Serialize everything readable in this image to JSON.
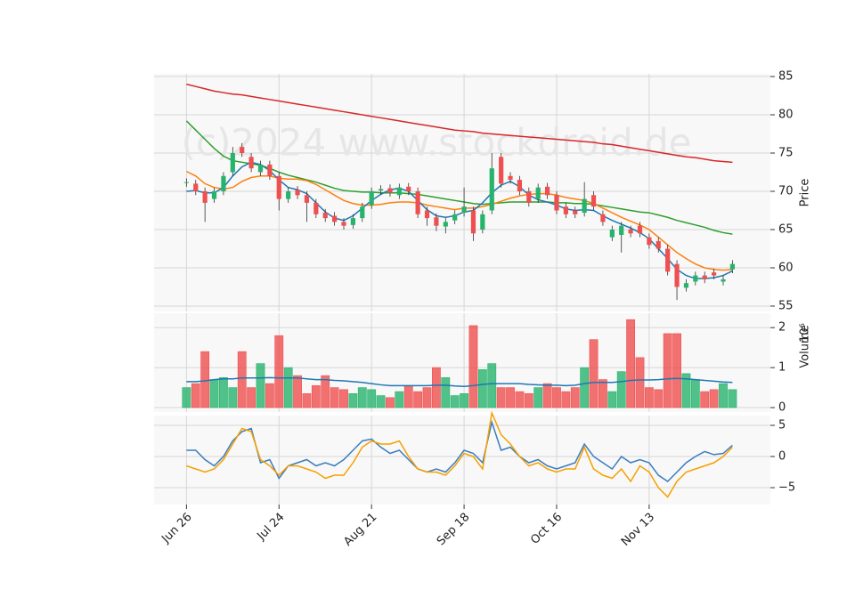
{
  "chart_data": [
    {
      "type": "candlestick",
      "watermark": "(c)2024 www.stockdroid.de",
      "y_label": "Price",
      "x": [
        0,
        1,
        2,
        3,
        4,
        5,
        6,
        7,
        8,
        9,
        10,
        11,
        12,
        13,
        14,
        15,
        16,
        17,
        18,
        19,
        20,
        21,
        22,
        23,
        24,
        25,
        26,
        27,
        28,
        29,
        30,
        31,
        32,
        33,
        34,
        35,
        36,
        37,
        38,
        39,
        40,
        41,
        42,
        43,
        44,
        45,
        46,
        47,
        48,
        49,
        50,
        51,
        52,
        53,
        54,
        55,
        56,
        57,
        58,
        59
      ],
      "open": [
        71.1,
        71,
        70,
        69,
        70,
        72.5,
        75.8,
        74.5,
        72.5,
        73.5,
        72,
        69,
        70.2,
        69.5,
        68.5,
        67.2,
        66.8,
        66,
        65.6,
        66.5,
        68.2,
        70.1,
        70.4,
        69.5,
        70.6,
        70,
        67.5,
        66.6,
        65.4,
        66.2,
        67.2,
        67.5,
        65,
        67.5,
        74.5,
        72,
        71.5,
        70,
        69,
        70.6,
        69.5,
        68,
        67.5,
        67.2,
        69.5,
        67,
        64,
        64.3,
        65,
        65.5,
        64,
        63.5,
        62.5,
        60.5,
        57.4,
        58.2,
        59,
        59.4,
        58.2,
        59.8
      ],
      "high": [
        71.7,
        71.5,
        70.5,
        70.5,
        72.5,
        75.8,
        76.3,
        75,
        74,
        74,
        72.5,
        70.5,
        70.7,
        70,
        69,
        67.7,
        67.3,
        66.5,
        67,
        68.5,
        70.5,
        70.8,
        70.9,
        71,
        71.1,
        70.5,
        68,
        67.1,
        66.5,
        67.5,
        70.5,
        68,
        67.5,
        75,
        75,
        72.5,
        72,
        70.5,
        71,
        71.1,
        70,
        68.5,
        68,
        71.2,
        70,
        67.5,
        65.5,
        66,
        65.5,
        66,
        64.5,
        64,
        63,
        61,
        58.5,
        59.5,
        59.5,
        59.9,
        59,
        61
      ],
      "low": [
        70.6,
        69.5,
        66,
        68.5,
        69.5,
        72,
        74.5,
        72.5,
        72,
        71.5,
        67.5,
        68.5,
        69,
        66,
        66.5,
        66,
        65.5,
        65,
        65.1,
        66,
        67.7,
        69.6,
        69.3,
        69,
        69.5,
        66.5,
        65.5,
        64.8,
        64.5,
        65.7,
        66.7,
        63.5,
        64.5,
        67,
        70.5,
        71,
        69.5,
        68,
        68.5,
        69,
        67,
        66.5,
        66.5,
        66.7,
        67.5,
        65.5,
        63.5,
        62,
        64,
        64,
        62.5,
        62,
        59,
        55.8,
        56.9,
        57.7,
        58,
        58.5,
        57.7,
        59.3
      ],
      "close": [
        71.2,
        70,
        68.5,
        70,
        72,
        75,
        75,
        73,
        73.5,
        72,
        69,
        70,
        69.5,
        68.5,
        67,
        66.5,
        66,
        65.5,
        66.5,
        68,
        70,
        70.3,
        69.8,
        70.5,
        70,
        67,
        66.5,
        65.5,
        66,
        67,
        68,
        64.5,
        67,
        73,
        71,
        71.5,
        70,
        68.5,
        70.5,
        69.5,
        67.5,
        67,
        67,
        69,
        68,
        66,
        65,
        65.5,
        64.5,
        64.5,
        63,
        62.5,
        59.5,
        57.5,
        58,
        59,
        58.5,
        59,
        58.5,
        60.5
      ],
      "up_color": "#26b36b",
      "down_color": "#ef4f4f",
      "series": [
        {
          "color": "#d62728",
          "values": [
            84.0,
            83.7,
            83.4,
            83.1,
            82.9,
            82.7,
            82.6,
            82.4,
            82.2,
            82.0,
            81.8,
            81.6,
            81.4,
            81.2,
            81.0,
            80.8,
            80.6,
            80.4,
            80.2,
            80.0,
            79.8,
            79.6,
            79.4,
            79.2,
            79.0,
            78.8,
            78.6,
            78.4,
            78.2,
            78.0,
            77.9,
            77.8,
            77.6,
            77.5,
            77.4,
            77.3,
            77.2,
            77.1,
            77.0,
            76.9,
            76.8,
            76.7,
            76.6,
            76.5,
            76.4,
            76.2,
            76.1,
            75.9,
            75.7,
            75.5,
            75.3,
            75.1,
            74.9,
            74.7,
            74.5,
            74.4,
            74.2,
            74.0,
            73.9,
            73.8
          ]
        },
        {
          "color": "#2ca02c",
          "values": [
            79.2,
            78.0,
            76.8,
            75.6,
            74.6,
            74.0,
            73.8,
            73.6,
            73.4,
            73.0,
            72.5,
            72.1,
            71.8,
            71.5,
            71.2,
            70.8,
            70.4,
            70.1,
            70.0,
            69.9,
            69.9,
            69.8,
            69.8,
            69.8,
            69.7,
            69.6,
            69.4,
            69.2,
            69.0,
            68.8,
            68.6,
            68.4,
            68.3,
            68.4,
            68.5,
            68.6,
            68.6,
            68.6,
            68.6,
            68.6,
            68.5,
            68.5,
            68.4,
            68.4,
            68.3,
            68.1,
            67.9,
            67.7,
            67.5,
            67.3,
            67.2,
            66.9,
            66.6,
            66.2,
            65.9,
            65.6,
            65.3,
            64.9,
            64.6,
            64.4
          ]
        },
        {
          "color": "#ff7f0e",
          "values": [
            72.6,
            72.0,
            71.0,
            70.5,
            70.3,
            70.5,
            71.3,
            71.8,
            72.0,
            72.0,
            71.7,
            71.6,
            71.6,
            71.4,
            70.9,
            70.2,
            69.5,
            68.8,
            68.4,
            68.2,
            68.2,
            68.3,
            68.5,
            68.6,
            68.6,
            68.5,
            68.2,
            68.0,
            67.8,
            67.6,
            67.8,
            67.8,
            68.0,
            68.3,
            68.7,
            69.1,
            69.4,
            69.6,
            69.7,
            69.7,
            69.5,
            69.2,
            69.0,
            68.8,
            68.4,
            67.8,
            67.2,
            66.6,
            66.1,
            65.6,
            65.0,
            64.0,
            63.0,
            62.0,
            61.2,
            60.5,
            60.0,
            59.8,
            59.7,
            59.8
          ]
        },
        {
          "color": "#1f77b4",
          "values": [
            70.0,
            70.1,
            69.8,
            69.8,
            70.5,
            72.0,
            73.2,
            73.8,
            73.5,
            72.7,
            71.5,
            70.5,
            70.2,
            69.7,
            68.5,
            67.3,
            66.5,
            66.2,
            66.8,
            67.8,
            68.8,
            69.6,
            70.2,
            70.4,
            70.0,
            68.8,
            67.6,
            66.8,
            66.6,
            66.8,
            67.3,
            67.5,
            68.5,
            69.8,
            70.8,
            71.3,
            70.6,
            69.5,
            68.9,
            68.6,
            68.2,
            67.7,
            67.5,
            67.6,
            67.5,
            66.8,
            66.2,
            65.7,
            65.2,
            64.6,
            63.8,
            62.5,
            61.2,
            59.8,
            59.0,
            58.6,
            58.6,
            58.7,
            59.0,
            59.6
          ]
        }
      ],
      "xlim": [
        -3.5,
        63.1
      ],
      "ylim": [
        54.3,
        85.35
      ],
      "yticks": [
        55,
        60,
        65,
        70,
        75,
        80,
        85
      ],
      "grid": true
    },
    {
      "type": "bar",
      "y_label": "Volume",
      "y_scale_label": "10⁶",
      "x": [
        0,
        1,
        2,
        3,
        4,
        5,
        6,
        7,
        8,
        9,
        10,
        11,
        12,
        13,
        14,
        15,
        16,
        17,
        18,
        19,
        20,
        21,
        22,
        23,
        24,
        25,
        26,
        27,
        28,
        29,
        30,
        31,
        32,
        33,
        34,
        35,
        36,
        37,
        38,
        39,
        40,
        41,
        42,
        43,
        44,
        45,
        46,
        47,
        48,
        49,
        50,
        51,
        52,
        53,
        54,
        55,
        56,
        57,
        58,
        59
      ],
      "values": [
        0.5,
        0.6,
        1.4,
        0.7,
        0.75,
        0.5,
        1.4,
        0.5,
        1.1,
        0.6,
        1.8,
        1.0,
        0.8,
        0.35,
        0.55,
        0.8,
        0.5,
        0.45,
        0.35,
        0.5,
        0.45,
        0.3,
        0.25,
        0.4,
        0.55,
        0.4,
        0.5,
        1.0,
        0.75,
        0.3,
        0.35,
        2.05,
        0.95,
        1.1,
        0.5,
        0.5,
        0.4,
        0.35,
        0.5,
        0.6,
        0.5,
        0.4,
        0.5,
        1.0,
        1.7,
        0.7,
        0.4,
        0.9,
        2.2,
        1.25,
        0.5,
        0.45,
        1.85,
        1.85,
        0.85,
        0.7,
        0.4,
        0.45,
        0.6,
        0.45
      ],
      "series": [
        {
          "color": "#1f77b4",
          "values": [
            0.65,
            0.65,
            0.67,
            0.7,
            0.72,
            0.72,
            0.74,
            0.74,
            0.74,
            0.75,
            0.74,
            0.74,
            0.74,
            0.72,
            0.7,
            0.7,
            0.68,
            0.67,
            0.65,
            0.63,
            0.6,
            0.57,
            0.55,
            0.55,
            0.55,
            0.55,
            0.55,
            0.56,
            0.56,
            0.54,
            0.53,
            0.55,
            0.58,
            0.6,
            0.6,
            0.6,
            0.6,
            0.58,
            0.57,
            0.56,
            0.56,
            0.55,
            0.56,
            0.6,
            0.63,
            0.63,
            0.63,
            0.65,
            0.68,
            0.69,
            0.69,
            0.7,
            0.72,
            0.73,
            0.72,
            0.7,
            0.68,
            0.66,
            0.64,
            0.63
          ]
        }
      ],
      "xlim": [
        -3.5,
        63.1
      ],
      "ylim": [
        -0.11,
        2.36
      ],
      "yticks": [
        0,
        1,
        2
      ],
      "grid": true
    },
    {
      "type": "line",
      "x": [
        0,
        1,
        2,
        3,
        4,
        5,
        6,
        7,
        8,
        9,
        10,
        11,
        12,
        13,
        14,
        15,
        16,
        17,
        18,
        19,
        20,
        21,
        22,
        23,
        24,
        25,
        26,
        27,
        28,
        29,
        30,
        31,
        32,
        33,
        34,
        35,
        36,
        37,
        38,
        39,
        40,
        41,
        42,
        43,
        44,
        45,
        46,
        47,
        48,
        49,
        50,
        51,
        52,
        53,
        54,
        55,
        56,
        57,
        58,
        59
      ],
      "series": [
        {
          "color": "#3b7dbf",
          "values": [
            1,
            1,
            -0.5,
            -1.5,
            0,
            2.5,
            4,
            4.5,
            -1,
            -0.5,
            -3.5,
            -1.5,
            -1,
            -0.5,
            -1.5,
            -1,
            -1.5,
            -0.5,
            1,
            2.5,
            2.8,
            1.5,
            0.5,
            1,
            -0.5,
            -2,
            -2.5,
            -2,
            -2.5,
            -1,
            1,
            0.5,
            -1,
            5.5,
            1,
            1.5,
            0,
            -1,
            -0.5,
            -1.5,
            -2,
            -1.5,
            -1,
            2,
            0,
            -1,
            -2,
            0,
            -1,
            -0.5,
            -1,
            -3,
            -4,
            -2.5,
            -1,
            0,
            0.8,
            0.3,
            0.5,
            1.8
          ]
        },
        {
          "color": "#f5a000",
          "values": [
            -1.5,
            -2,
            -2.5,
            -2,
            -0.5,
            2,
            4.5,
            4,
            -0.5,
            -1.5,
            -3,
            -1.5,
            -1.5,
            -2,
            -2.5,
            -3.5,
            -3,
            -3,
            -1,
            1.5,
            2.5,
            2,
            2,
            2.5,
            0,
            -2,
            -2.5,
            -2.5,
            -3,
            -1.5,
            0.5,
            0,
            -2,
            7,
            3.5,
            2,
            0,
            -1.5,
            -1,
            -2,
            -2.5,
            -2,
            -2,
            1.5,
            -2,
            -3,
            -3.5,
            -2,
            -4,
            -1.5,
            -2.5,
            -5,
            -6.5,
            -4,
            -2.5,
            -2,
            -1.5,
            -1,
            0,
            1.5
          ]
        }
      ],
      "xlim": [
        -3.5,
        63.1
      ],
      "ylim": [
        -7.71,
        6.57
      ],
      "yticks": [
        {
          "value": -5,
          "label": "−5"
        },
        0,
        5
      ],
      "xticks": [
        {
          "value": 0,
          "label": "Jun 26"
        },
        {
          "value": 10,
          "label": "Jul 24"
        },
        {
          "value": 20,
          "label": "Aug 21"
        },
        {
          "value": 30,
          "label": "Sep 18"
        },
        {
          "value": 40,
          "label": "Oct 16"
        },
        {
          "value": 50,
          "label": "Nov 13"
        }
      ],
      "grid": true
    }
  ]
}
